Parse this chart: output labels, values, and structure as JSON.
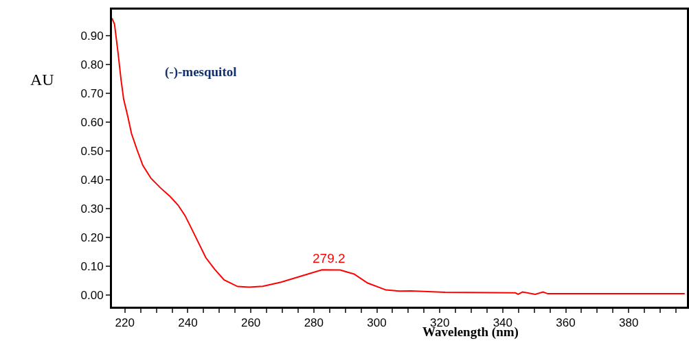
{
  "chart_data": {
    "type": "line",
    "xlabel": "Wavelength (nm)",
    "ylabel": "AU",
    "annotations": [
      "(-)-mesquitol",
      "279.2"
    ],
    "x": [
      215.9,
      216.7,
      217.8,
      218.8,
      219.6,
      221,
      222.1,
      223.9,
      225.7,
      228.3,
      231.2,
      234.1,
      236.9,
      239.1,
      241.3,
      243.5,
      245.7,
      248.5,
      251.5,
      255.8,
      259.5,
      263.8,
      269.6,
      276.8,
      282.6,
      288.4,
      292.8,
      297.1,
      302.9,
      307.2,
      310.9,
      321.7,
      344,
      344.9,
      346.3,
      350.3,
      352.8,
      354.3,
      397.8
    ],
    "series": [
      {
        "color": "#ff0000",
        "values": [
          0.96,
          0.94,
          0.843,
          0.745,
          0.68,
          0.616,
          0.56,
          0.503,
          0.45,
          0.405,
          0.373,
          0.345,
          0.312,
          0.276,
          0.228,
          0.179,
          0.13,
          0.09,
          0.053,
          0.03,
          0.028,
          0.031,
          0.045,
          0.069,
          0.088,
          0.087,
          0.073,
          0.042,
          0.018,
          0.014,
          0.015,
          0.01,
          0.008,
          0.003,
          0.011,
          0.003,
          0.011,
          0.005,
          0.005
        ]
      }
    ],
    "xlim": [
      215.9,
      398.5
    ],
    "ylim": [
      -0.04,
      0.99
    ],
    "xticks": [
      220,
      {
        "value": 225,
        "label": null
      },
      {
        "value": 230,
        "label": null
      },
      {
        "value": 235,
        "label": null
      },
      240,
      {
        "value": 245,
        "label": null
      },
      {
        "value": 250,
        "label": null
      },
      {
        "value": 255,
        "label": null
      },
      260,
      {
        "value": 265,
        "label": null
      },
      {
        "value": 270,
        "label": null
      },
      {
        "value": 275,
        "label": null
      },
      280,
      {
        "value": 285,
        "label": null
      },
      {
        "value": 290,
        "label": null
      },
      {
        "value": 295,
        "label": null
      },
      300,
      {
        "value": 305,
        "label": null
      },
      {
        "value": 310,
        "label": null
      },
      {
        "value": 315,
        "label": null
      },
      320,
      {
        "value": 325,
        "label": null
      },
      {
        "value": 330,
        "label": null
      },
      {
        "value": 335,
        "label": null
      },
      340,
      {
        "value": 345,
        "label": null
      },
      {
        "value": 350,
        "label": null
      },
      {
        "value": 355,
        "label": null
      },
      360,
      {
        "value": 365,
        "label": null
      },
      {
        "value": 370,
        "label": null
      },
      {
        "value": 375,
        "label": null
      },
      380,
      {
        "value": 385,
        "label": null
      },
      {
        "value": 390,
        "label": null
      },
      {
        "value": 395,
        "label": null
      }
    ],
    "yticks": [
      {
        "value": 0,
        "label": "0.00"
      },
      {
        "value": 0.1,
        "label": "0.10"
      },
      {
        "value": 0.2,
        "label": "0.20"
      },
      {
        "value": 0.3,
        "label": "0.30"
      },
      {
        "value": 0.4,
        "label": "0.40"
      },
      {
        "value": 0.5,
        "label": "0.50"
      },
      {
        "value": 0.6,
        "label": "0.60"
      },
      {
        "value": 0.7,
        "label": "0.70"
      },
      {
        "value": 0.8,
        "label": "0.80"
      },
      {
        "value": 0.9,
        "label": "0.90"
      }
    ],
    "grid": false,
    "marker": "none",
    "line_style": "solid"
  }
}
